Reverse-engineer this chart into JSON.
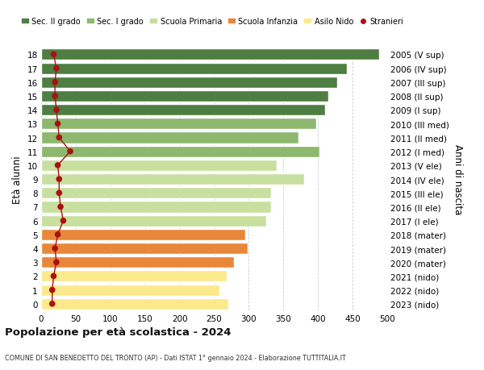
{
  "ages": [
    0,
    1,
    2,
    3,
    4,
    5,
    6,
    7,
    8,
    9,
    10,
    11,
    12,
    13,
    14,
    15,
    16,
    17,
    18
  ],
  "bar_values": [
    270,
    258,
    268,
    278,
    298,
    295,
    325,
    332,
    332,
    380,
    340,
    402,
    372,
    398,
    410,
    415,
    428,
    442,
    488
  ],
  "stranieri_values": [
    16,
    16,
    18,
    22,
    20,
    24,
    32,
    28,
    26,
    26,
    24,
    42,
    26,
    24,
    22,
    20,
    20,
    22,
    18
  ],
  "bar_colors": [
    "#fce98c",
    "#fce98c",
    "#fce98c",
    "#e8873a",
    "#e8873a",
    "#e8873a",
    "#c9dfa0",
    "#c9dfa0",
    "#c9dfa0",
    "#c9dfa0",
    "#c9dfa0",
    "#8db86e",
    "#8db86e",
    "#8db86e",
    "#4e7e42",
    "#4e7e42",
    "#4e7e42",
    "#4e7e42",
    "#4e7e42"
  ],
  "right_labels": [
    "2023 (nido)",
    "2022 (nido)",
    "2021 (nido)",
    "2020 (mater)",
    "2019 (mater)",
    "2018 (mater)",
    "2017 (I ele)",
    "2016 (II ele)",
    "2015 (III ele)",
    "2014 (IV ele)",
    "2013 (V ele)",
    "2012 (I med)",
    "2011 (II med)",
    "2010 (III med)",
    "2009 (I sup)",
    "2008 (II sup)",
    "2007 (III sup)",
    "2006 (IV sup)",
    "2005 (V sup)"
  ],
  "legend_labels": [
    "Sec. II grado",
    "Sec. I grado",
    "Scuola Primaria",
    "Scuola Infanzia",
    "Asilo Nido",
    "Stranieri"
  ],
  "legend_colors": [
    "#4e7e42",
    "#8db86e",
    "#c9dfa0",
    "#e8873a",
    "#fce98c",
    "#aa1111"
  ],
  "ylabel": "Età alunni",
  "right_ylabel": "Anni di nascita",
  "title": "Popolazione per età scolastica - 2024",
  "subtitle": "COMUNE DI SAN BENEDETTO DEL TRONTO (AP) - Dati ISTAT 1° gennaio 2024 - Elaborazione TUTTITALIA.IT",
  "xlim": [
    0,
    500
  ],
  "xticks": [
    0,
    50,
    100,
    150,
    200,
    250,
    300,
    350,
    400,
    450,
    500
  ],
  "bg_color": "#ffffff",
  "grid_color": "#cccccc",
  "stranieri_color": "#aa1111",
  "bar_edge_color": "#ffffff",
  "bar_height": 0.82
}
